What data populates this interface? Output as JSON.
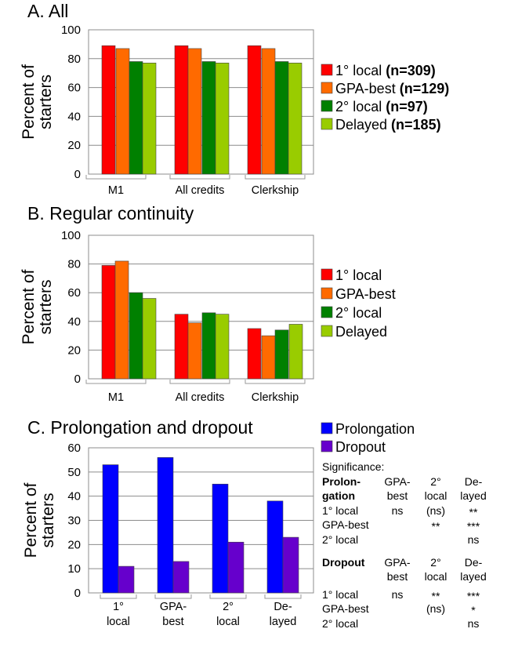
{
  "colors": {
    "local1": "#ff0000",
    "gpa_best": "#ff6a00",
    "local2": "#008000",
    "delayed": "#99cc00",
    "prolongation": "#0000ff",
    "dropout": "#6600cc",
    "gridline": "#8c8c8c"
  },
  "chart_data": [
    {
      "type": "bar",
      "title": "A. All",
      "ylabel": "Percent of starters",
      "ylabel_lines": [
        "Percent of",
        "starters"
      ],
      "ylim": [
        0,
        100
      ],
      "yticks": [
        "0",
        "20",
        "40",
        "60",
        "80",
        "100"
      ],
      "grid": true,
      "legend_position": "right",
      "categories": [
        "M1",
        "All credits",
        "Clerkship"
      ],
      "series": [
        {
          "name": "1° local",
          "count": "(n=309)",
          "values": [
            89,
            89,
            89
          ]
        },
        {
          "name": "GPA-best",
          "count": "(n=129)",
          "values": [
            87,
            87,
            87
          ]
        },
        {
          "name": "2° local",
          "count": "(n=97)",
          "values": [
            78,
            78,
            78
          ]
        },
        {
          "name": "Delayed",
          "count": "(n=185)",
          "values": [
            77,
            77,
            77
          ]
        }
      ]
    },
    {
      "type": "bar",
      "title": "B. Regular continuity",
      "ylabel": "Percent of starters",
      "ylabel_lines": [
        "Percent of",
        "starters"
      ],
      "ylim": [
        0,
        100
      ],
      "yticks": [
        "0",
        "20",
        "40",
        "60",
        "80",
        "100"
      ],
      "grid": true,
      "legend_position": "right",
      "categories": [
        "M1",
        "All credits",
        "Clerkship"
      ],
      "series": [
        {
          "name": "1° local",
          "values": [
            79,
            45,
            35
          ]
        },
        {
          "name": "GPA-best",
          "values": [
            82,
            39,
            30
          ]
        },
        {
          "name": "2° local",
          "values": [
            60,
            46,
            34
          ]
        },
        {
          "name": "Delayed",
          "values": [
            56,
            45,
            38
          ]
        }
      ]
    },
    {
      "type": "bar",
      "title": "C. Prolongation and dropout",
      "ylabel": "Percent of starters",
      "ylabel_lines": [
        "Percent of",
        "starters"
      ],
      "ylim": [
        0,
        60
      ],
      "yticks": [
        "0",
        "10",
        "20",
        "30",
        "40",
        "50",
        "60"
      ],
      "grid": true,
      "legend_position": "top-right",
      "categories": [
        "1° local",
        "GPA-best",
        "2° local",
        "De-layed"
      ],
      "category_lines": [
        [
          "1°",
          "local"
        ],
        [
          "GPA-",
          "best"
        ],
        [
          "2°",
          "local"
        ],
        [
          "De-",
          "layed"
        ]
      ],
      "series": [
        {
          "name": "Prolongation",
          "values": [
            53,
            56,
            45,
            38
          ]
        },
        {
          "name": "Dropout",
          "values": [
            11,
            13,
            21,
            23
          ]
        }
      ]
    }
  ],
  "significance": {
    "heading": "Significance:",
    "col_headers": [
      [
        "GPA-",
        "best"
      ],
      [
        "2°",
        "local"
      ],
      [
        "De-",
        "layed"
      ]
    ],
    "row_labels": [
      "1° local",
      "GPA-best",
      "2° local"
    ],
    "prolongation": {
      "label_lines": [
        "Prolon-",
        "gation"
      ],
      "cells": [
        [
          "ns",
          "(ns)",
          "**"
        ],
        [
          "",
          "**",
          "***"
        ],
        [
          "",
          "",
          "ns"
        ]
      ]
    },
    "dropout": {
      "label": "Dropout",
      "cells": [
        [
          "ns",
          "**",
          "***"
        ],
        [
          "",
          "(ns)",
          "*"
        ],
        [
          "",
          "",
          "ns"
        ]
      ]
    }
  }
}
